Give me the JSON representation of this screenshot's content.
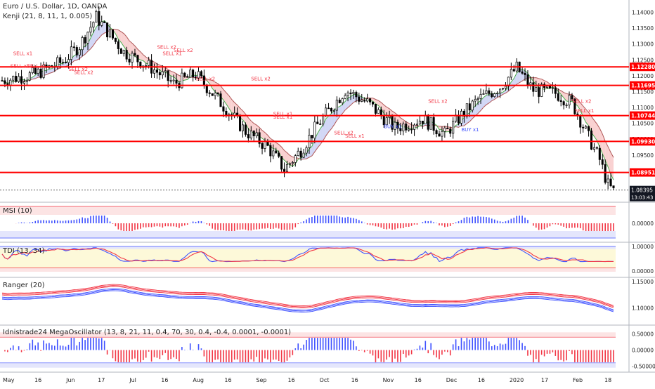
{
  "header": {
    "symbol_line": "Euro / U.S. Dollar, 1D, OANDA",
    "indicator_line": "Kenji (21, 8, 11, 1, 0.005)"
  },
  "chart_data": {
    "type": "candlestick",
    "title": "Euro / U.S. Dollar, 1D, OANDA",
    "price_axis_ticks": [
      1.14,
      1.135,
      1.13,
      1.125,
      1.12,
      1.115,
      1.11,
      1.105,
      1.1,
      1.095,
      1.09
    ],
    "price_axis_tick_labels": [
      "1.14000",
      "1.13500",
      "1.13000",
      "1.12500",
      "1.12000",
      "1.11500",
      "1.11000",
      "1.10500",
      "1.10000",
      "1.09500",
      "1.09000"
    ],
    "ylim": [
      1.081,
      1.143
    ],
    "horizontal_levels": [
      {
        "value": 1.1228,
        "label": "1.12280"
      },
      {
        "value": 1.11695,
        "label": "1.11695"
      },
      {
        "value": 1.10744,
        "label": "1.10744"
      },
      {
        "value": 1.0993,
        "label": "1.09930"
      },
      {
        "value": 1.08951,
        "label": "1.08951"
      }
    ],
    "last_price": {
      "value": 1.08395,
      "label": "1.08395",
      "countdown": "13:03:43"
    },
    "time_axis": [
      "May",
      "16",
      "Jun",
      "17",
      "Jul",
      "16",
      "Aug",
      "16",
      "Sep",
      "16",
      "Oct",
      "16",
      "Nov",
      "16",
      "Dec",
      "16",
      "2020",
      "17",
      "Feb",
      "18"
    ],
    "trend_path": [
      [
        0,
        1.1185
      ],
      [
        12,
        1.1205
      ],
      [
        22,
        1.1245
      ],
      [
        28,
        1.1295
      ],
      [
        34,
        1.1385
      ],
      [
        44,
        1.1275
      ],
      [
        54,
        1.1225
      ],
      [
        62,
        1.1175
      ],
      [
        70,
        1.1205
      ],
      [
        80,
        1.1105
      ],
      [
        88,
        1.1025
      ],
      [
        96,
        1.0975
      ],
      [
        102,
        1.0905
      ],
      [
        108,
        1.0965
      ],
      [
        114,
        1.1045
      ],
      [
        124,
        1.1155
      ],
      [
        132,
        1.1115
      ],
      [
        142,
        1.1035
      ],
      [
        152,
        1.1065
      ],
      [
        160,
        1.1015
      ],
      [
        166,
        1.1075
      ],
      [
        172,
        1.1125
      ],
      [
        180,
        1.1165
      ],
      [
        186,
        1.1225
      ],
      [
        192,
        1.1155
      ],
      [
        200,
        1.1145
      ],
      [
        206,
        1.1115
      ],
      [
        212,
        1.1005
      ],
      [
        216,
        1.0935
      ],
      [
        219,
        1.0855
      ],
      [
        221,
        1.0835
      ]
    ],
    "candle_count": 222,
    "signal_labels": [
      {
        "text": "SELL x1",
        "x": 4,
        "y": 1.1265,
        "color": "red"
      },
      {
        "text": "SELL x2",
        "x": 3,
        "y": 1.1225,
        "color": "red"
      },
      {
        "text": "SELL x1",
        "x": 9,
        "y": 1.1225,
        "color": "red"
      },
      {
        "text": "SELL x2",
        "x": 24,
        "y": 1.1215,
        "color": "red"
      },
      {
        "text": "SELL x2",
        "x": 26,
        "y": 1.1205,
        "color": "red"
      },
      {
        "text": "SELL x2",
        "x": 56,
        "y": 1.1285,
        "color": "red"
      },
      {
        "text": "SELL x2",
        "x": 62,
        "y": 1.1275,
        "color": "red"
      },
      {
        "text": "SELL x1",
        "x": 58,
        "y": 1.1265,
        "color": "red"
      },
      {
        "text": "SELL x2",
        "x": 70,
        "y": 1.1185,
        "color": "red"
      },
      {
        "text": "SELL x2",
        "x": 90,
        "y": 1.1185,
        "color": "red"
      },
      {
        "text": "SELL x1",
        "x": 98,
        "y": 1.1075,
        "color": "red"
      },
      {
        "text": "SELL x1",
        "x": 98,
        "y": 1.1065,
        "color": "red"
      },
      {
        "text": "SELL x2",
        "x": 120,
        "y": 1.1015,
        "color": "red"
      },
      {
        "text": "SELL x1",
        "x": 124,
        "y": 1.1005,
        "color": "red"
      },
      {
        "text": "BUY x1",
        "x": 138,
        "y": 1.1035,
        "color": "blue"
      },
      {
        "text": "SELL x2",
        "x": 154,
        "y": 1.1115,
        "color": "red"
      },
      {
        "text": "BUY x1",
        "x": 166,
        "y": 1.1025,
        "color": "blue"
      },
      {
        "text": "SELL x2",
        "x": 206,
        "y": 1.1115,
        "color": "red"
      },
      {
        "text": "SELL x1",
        "x": 207,
        "y": 1.1085,
        "color": "red"
      }
    ]
  },
  "panes": {
    "msi": {
      "label": "MSI (10)",
      "ticks": [
        "0.00000"
      ]
    },
    "tdi": {
      "label": "TDI (13, 34)",
      "ticks": [
        "1.00000",
        "0.00000"
      ]
    },
    "ranger": {
      "label": "Ranger (20)",
      "ticks": [
        "1.15000",
        "1.10000"
      ]
    },
    "mega": {
      "label": "Idnistrade24 MegaOscillator (13, 8, 21, 11, 0.4, 70, 30, 0.4, -0.4, 0.0001, -0.0001)",
      "ticks": [
        "0.50000",
        "0.00000",
        "-0.50000"
      ]
    }
  },
  "colors": {
    "up": "#ffffff",
    "down": "#000000",
    "level": "#ff0000",
    "bull": "#3f51ff",
    "bear": "#f23645",
    "band_green": "#4caf50",
    "cloud_red": "#f8c5c5",
    "cloud_blue": "#c7cdf4",
    "axis_text": "#222222"
  }
}
